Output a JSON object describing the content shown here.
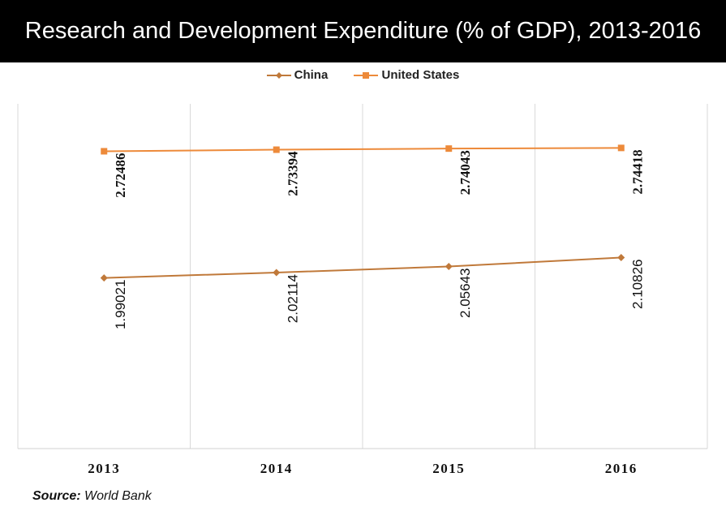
{
  "title": "Research and Development Expenditure (% of GDP), 2013-2016",
  "source_label": "Source:",
  "source_value": "World Bank",
  "chart_data": {
    "type": "line",
    "title": "Research and Development Expenditure (% of GDP), 2013-2016",
    "categories": [
      "2013",
      "2014",
      "2015",
      "2016"
    ],
    "series": [
      {
        "name": "China",
        "values": [
          1.99021,
          2.02114,
          2.05643,
          2.10826
        ],
        "labels": [
          "1.99021",
          "2.02114",
          "2.05643",
          "2.10826"
        ],
        "color": "#C0793A",
        "marker": "diamond"
      },
      {
        "name": "United States",
        "values": [
          2.72486,
          2.73394,
          2.74043,
          2.74418
        ],
        "labels": [
          "2.72486",
          "2.73394",
          "2.74043",
          "2.74418"
        ],
        "color": "#ED8A3A",
        "marker": "square"
      }
    ],
    "legend_position": "top",
    "grid": "vertical",
    "ylim": [
      1.0,
      3.0
    ],
    "xlabel": "",
    "ylabel": ""
  }
}
